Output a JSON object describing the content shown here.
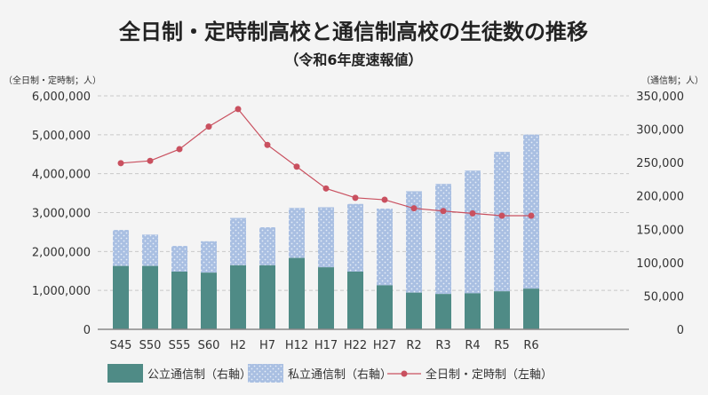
{
  "chart_data": {
    "type": "bar",
    "title": "全日制・定時制高校と通信制高校の生徒数の推移",
    "subtitle": "（令和6年度速報値）",
    "left_axis": {
      "unit_label": "（全日制・定時制；人）",
      "ylim": [
        0,
        6000000
      ],
      "ticks": [
        "0",
        "1,000,000",
        "2,000,000",
        "3,000,000",
        "4,000,000",
        "5,000,000",
        "6,000,000"
      ]
    },
    "right_axis": {
      "unit_label": "（通信制；人）",
      "ylim": [
        0,
        350000
      ],
      "ticks": [
        "0",
        "50,000",
        "100,000",
        "150,000",
        "200,000",
        "250,000",
        "300,000",
        "350,000"
      ]
    },
    "grid": true,
    "legend_position": "bottom",
    "categories": [
      "S45",
      "S50",
      "S55",
      "S60",
      "H2",
      "H7",
      "H12",
      "H17",
      "H22",
      "H27",
      "R2",
      "R3",
      "R4",
      "R5",
      "R6"
    ],
    "series": [
      {
        "name": "公立通信制（右軸）",
        "type": "stacked-bar",
        "axis": "right",
        "color": "#4f8b86",
        "values": [
          95000,
          95000,
          86500,
          85000,
          96000,
          96000,
          107000,
          93000,
          86500,
          66000,
          55000,
          53000,
          54000,
          57000,
          61000
        ]
      },
      {
        "name": "私立通信制（右軸）",
        "type": "stacked-bar",
        "axis": "right",
        "color": "#a9bfe2",
        "values": [
          54000,
          47000,
          38500,
          47000,
          71000,
          57000,
          75000,
          90000,
          101500,
          115000,
          152000,
          165000,
          184000,
          209000,
          231000
        ]
      },
      {
        "name": "全日制・定時制（左軸）",
        "type": "line",
        "axis": "left",
        "color": "#c9505f",
        "values": [
          4270000,
          4330000,
          4630000,
          5210000,
          5660000,
          4740000,
          4180000,
          3620000,
          3380000,
          3330000,
          3110000,
          3040000,
          2980000,
          2920000,
          2920000
        ]
      }
    ]
  }
}
